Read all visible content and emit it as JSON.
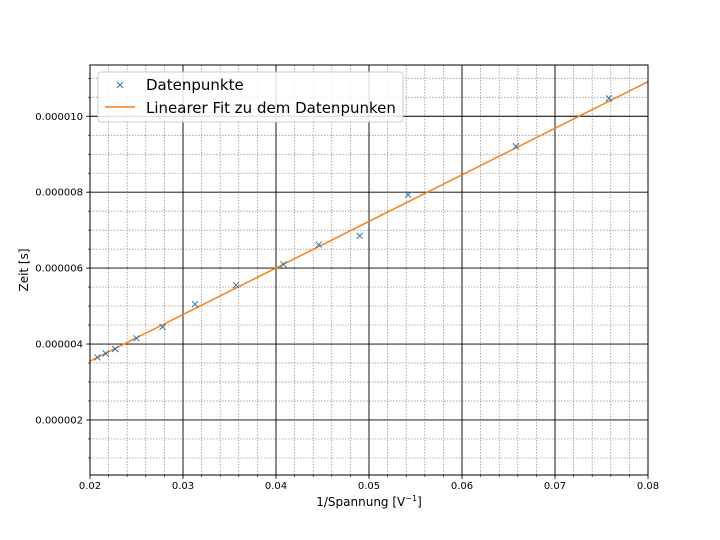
{
  "chart_data": {
    "type": "scatter",
    "xlabel": "1/Spannung",
    "xunit_base": "[V",
    "xunit_exp": "−1",
    "xunit_close": "]",
    "ylabel": "Zeit [s]",
    "xlim": [
      0.02,
      0.08
    ],
    "ylim": [
      5.5e-07,
      1.135e-05
    ],
    "xticks": [
      0.02,
      0.03,
      0.04,
      0.05,
      0.06,
      0.07,
      0.08
    ],
    "xtick_labels": [
      "0.02",
      "0.03",
      "0.04",
      "0.05",
      "0.06",
      "0.07",
      "0.08"
    ],
    "yticks": [
      2e-06,
      4e-06,
      6e-06,
      8e-06,
      1e-05
    ],
    "ytick_labels": [
      "0.000002",
      "0.000004",
      "0.000006",
      "0.000008",
      "0.000010"
    ],
    "grid": "major and minor",
    "legend_position": "top-left",
    "series": [
      {
        "name": "Datenpunkte",
        "kind": "marker",
        "marker": "x",
        "color": "#1f77b4",
        "points": [
          [
            0.0208,
            3.65e-06
          ],
          [
            0.0217,
            3.75e-06
          ],
          [
            0.0227,
            3.87e-06
          ],
          [
            0.025,
            4.15e-06
          ],
          [
            0.0278,
            4.45e-06
          ],
          [
            0.0313,
            5.05e-06
          ],
          [
            0.0357,
            5.55e-06
          ],
          [
            0.0408,
            6.1e-06
          ],
          [
            0.0446,
            6.62e-06
          ],
          [
            0.049,
            6.85e-06
          ],
          [
            0.0542,
            7.93e-06
          ],
          [
            0.0658,
            9.21e-06
          ],
          [
            0.0758,
            1.047e-05
          ]
        ]
      },
      {
        "name": "Linearer Fit zu dem Datenpunken",
        "kind": "line",
        "color": "#ff7f0e",
        "points": [
          [
            0.02,
            3.55e-06
          ],
          [
            0.08,
            1.091e-05
          ]
        ]
      }
    ]
  }
}
